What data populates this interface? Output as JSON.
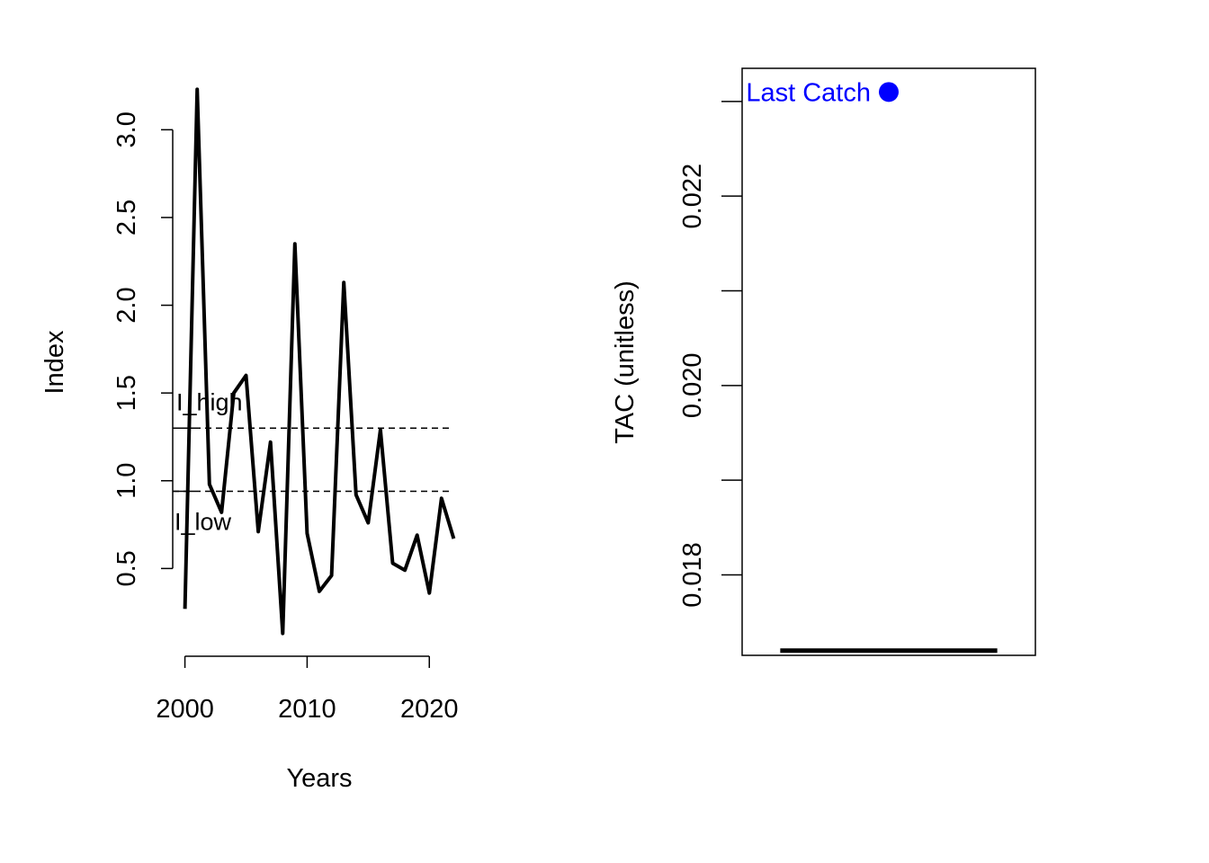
{
  "chart_data": [
    {
      "type": "line",
      "xlabel": "Years",
      "ylabel": "Index",
      "xlim": [
        1999,
        2023
      ],
      "ylim": [
        0,
        3.35
      ],
      "xticks": [
        2000,
        2010,
        2020
      ],
      "yticks": [
        0.5,
        1.0,
        1.5,
        2.0,
        2.5,
        3.0
      ],
      "xtick_labels": [
        "2000",
        "2010",
        "2020"
      ],
      "ytick_labels": [
        "0.5",
        "1.0",
        "1.5",
        "2.0",
        "2.5",
        "3.0"
      ],
      "grid": false,
      "box": false,
      "series": [
        {
          "x": [
            2000,
            2001,
            2002,
            2003,
            2004,
            2005,
            2006,
            2007,
            2008,
            2009,
            2010,
            2011,
            2012,
            2013,
            2014,
            2015,
            2016,
            2017,
            2018,
            2019,
            2020,
            2021,
            2022
          ],
          "values": [
            0.27,
            3.23,
            0.98,
            0.82,
            1.5,
            1.6,
            0.71,
            1.22,
            0.13,
            2.35,
            0.7,
            0.37,
            0.46,
            2.13,
            0.92,
            0.76,
            1.29,
            0.53,
            0.49,
            0.69,
            0.36,
            0.9,
            0.67
          ],
          "color": "#000000"
        }
      ],
      "reference_lines": [
        {
          "label": "I_high",
          "value": 1.3,
          "style": "dashed"
        },
        {
          "label": "I_low",
          "value": 0.94,
          "style": "dashed"
        }
      ],
      "tick_marks": [
        {
          "value": 1.3
        },
        {
          "value": 0.94
        }
      ]
    },
    {
      "type": "line",
      "xlabel": "",
      "ylabel": "TAC (unitless)",
      "xlim": [
        0,
        1
      ],
      "ylim": [
        0.01715,
        0.02335
      ],
      "yticks": [
        0.018,
        0.019,
        0.02,
        0.021,
        0.022,
        0.023
      ],
      "ytick_labels": [
        "0.018",
        "",
        "0.020",
        "",
        "0.022",
        ""
      ],
      "box": true,
      "series": [
        {
          "x": [
            0.13,
            0.87
          ],
          "values": [
            0.0172,
            0.0172
          ],
          "color": "#000000"
        }
      ],
      "annotations": [
        {
          "label": "Last Catch",
          "value": 0.0231,
          "color": "#0000FF"
        }
      ],
      "points": [
        {
          "x": 0.5,
          "y": 0.0231,
          "color": "#0000FF"
        }
      ]
    }
  ]
}
